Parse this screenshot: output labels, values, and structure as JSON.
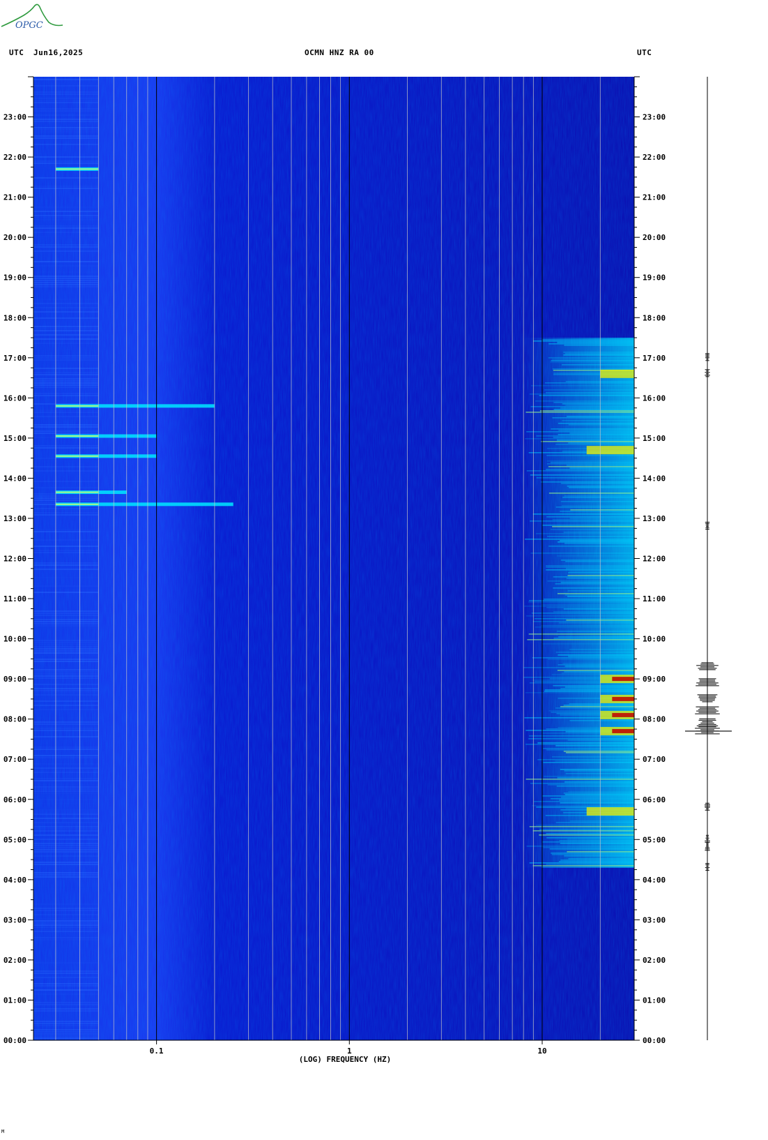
{
  "logo_text": "OPGC",
  "header": {
    "left_utc": "UTC",
    "date": "Jun16,2025",
    "station": "OCMN HNZ RA 00",
    "right_utc": "UTC"
  },
  "corner_mark": "M",
  "colors": {
    "background_low": "#0a14c8",
    "mid": "#0064ff",
    "cyan": "#00e8ff",
    "yellow": "#f0f000",
    "red": "#c00000",
    "axis": "#000000",
    "grid_light": "#c8c8c8"
  },
  "chart_data": {
    "type": "heatmap",
    "title": "OCMN HNZ RA 00",
    "date": "Jun16,2025",
    "xlabel": "(LOG) FREQUENCY (HZ)",
    "ylabel": "UTC",
    "x_scale": "log",
    "x_range": [
      0.023,
      30
    ],
    "x_ticks": [
      0.1,
      1,
      10
    ],
    "x_tick_labels": [
      "0.1",
      "1",
      "10"
    ],
    "y_range_hours": [
      0,
      24
    ],
    "y_tick_labels": [
      "00:00",
      "01:00",
      "02:00",
      "03:00",
      "04:00",
      "05:00",
      "06:00",
      "07:00",
      "08:00",
      "09:00",
      "10:00",
      "11:00",
      "12:00",
      "13:00",
      "14:00",
      "15:00",
      "16:00",
      "17:00",
      "18:00",
      "19:00",
      "20:00",
      "21:00",
      "22:00",
      "23:00"
    ],
    "grid_lines_hz": [
      0.03,
      0.04,
      0.05,
      0.06,
      0.07,
      0.08,
      0.09,
      0.2,
      0.3,
      0.4,
      0.5,
      0.6,
      0.7,
      0.8,
      0.9,
      2,
      3,
      4,
      5,
      6,
      7,
      8,
      9,
      20,
      30
    ],
    "major_lines_hz": [
      0.1,
      1,
      10
    ],
    "colorscale": [
      "#0a14c8",
      "#0064ff",
      "#00e8ff",
      "#f0f000",
      "#c00000"
    ],
    "high_frequency_noise_hours": [
      4.3,
      17.5
    ],
    "strong_events": [
      {
        "hour": 7.7,
        "band_hz": [
          20,
          30
        ],
        "level": "red"
      },
      {
        "hour": 8.1,
        "band_hz": [
          20,
          30
        ],
        "level": "red"
      },
      {
        "hour": 8.5,
        "band_hz": [
          20,
          30
        ],
        "level": "red"
      },
      {
        "hour": 9.0,
        "band_hz": [
          20,
          30
        ],
        "level": "red"
      },
      {
        "hour": 5.7,
        "band_hz": [
          17,
          30
        ],
        "level": "yellow"
      },
      {
        "hour": 16.6,
        "band_hz": [
          20,
          30
        ],
        "level": "yellow"
      },
      {
        "hour": 14.7,
        "band_hz": [
          17,
          30
        ],
        "level": "yellow"
      }
    ],
    "low_frequency_bands": [
      {
        "hour": 15.8,
        "max_hz": 0.2
      },
      {
        "hour": 15.05,
        "max_hz": 0.1
      },
      {
        "hour": 14.55,
        "max_hz": 0.1
      },
      {
        "hour": 13.65,
        "max_hz": 0.07
      },
      {
        "hour": 13.35,
        "max_hz": 0.25
      },
      {
        "hour": 21.7,
        "max_hz": 0.05
      }
    ],
    "seismogram_events_hours": [
      4.3,
      4.8,
      5.0,
      5.8,
      7.7,
      7.9,
      8.2,
      8.5,
      8.9,
      9.3,
      12.8,
      16.6,
      17.0
    ]
  }
}
